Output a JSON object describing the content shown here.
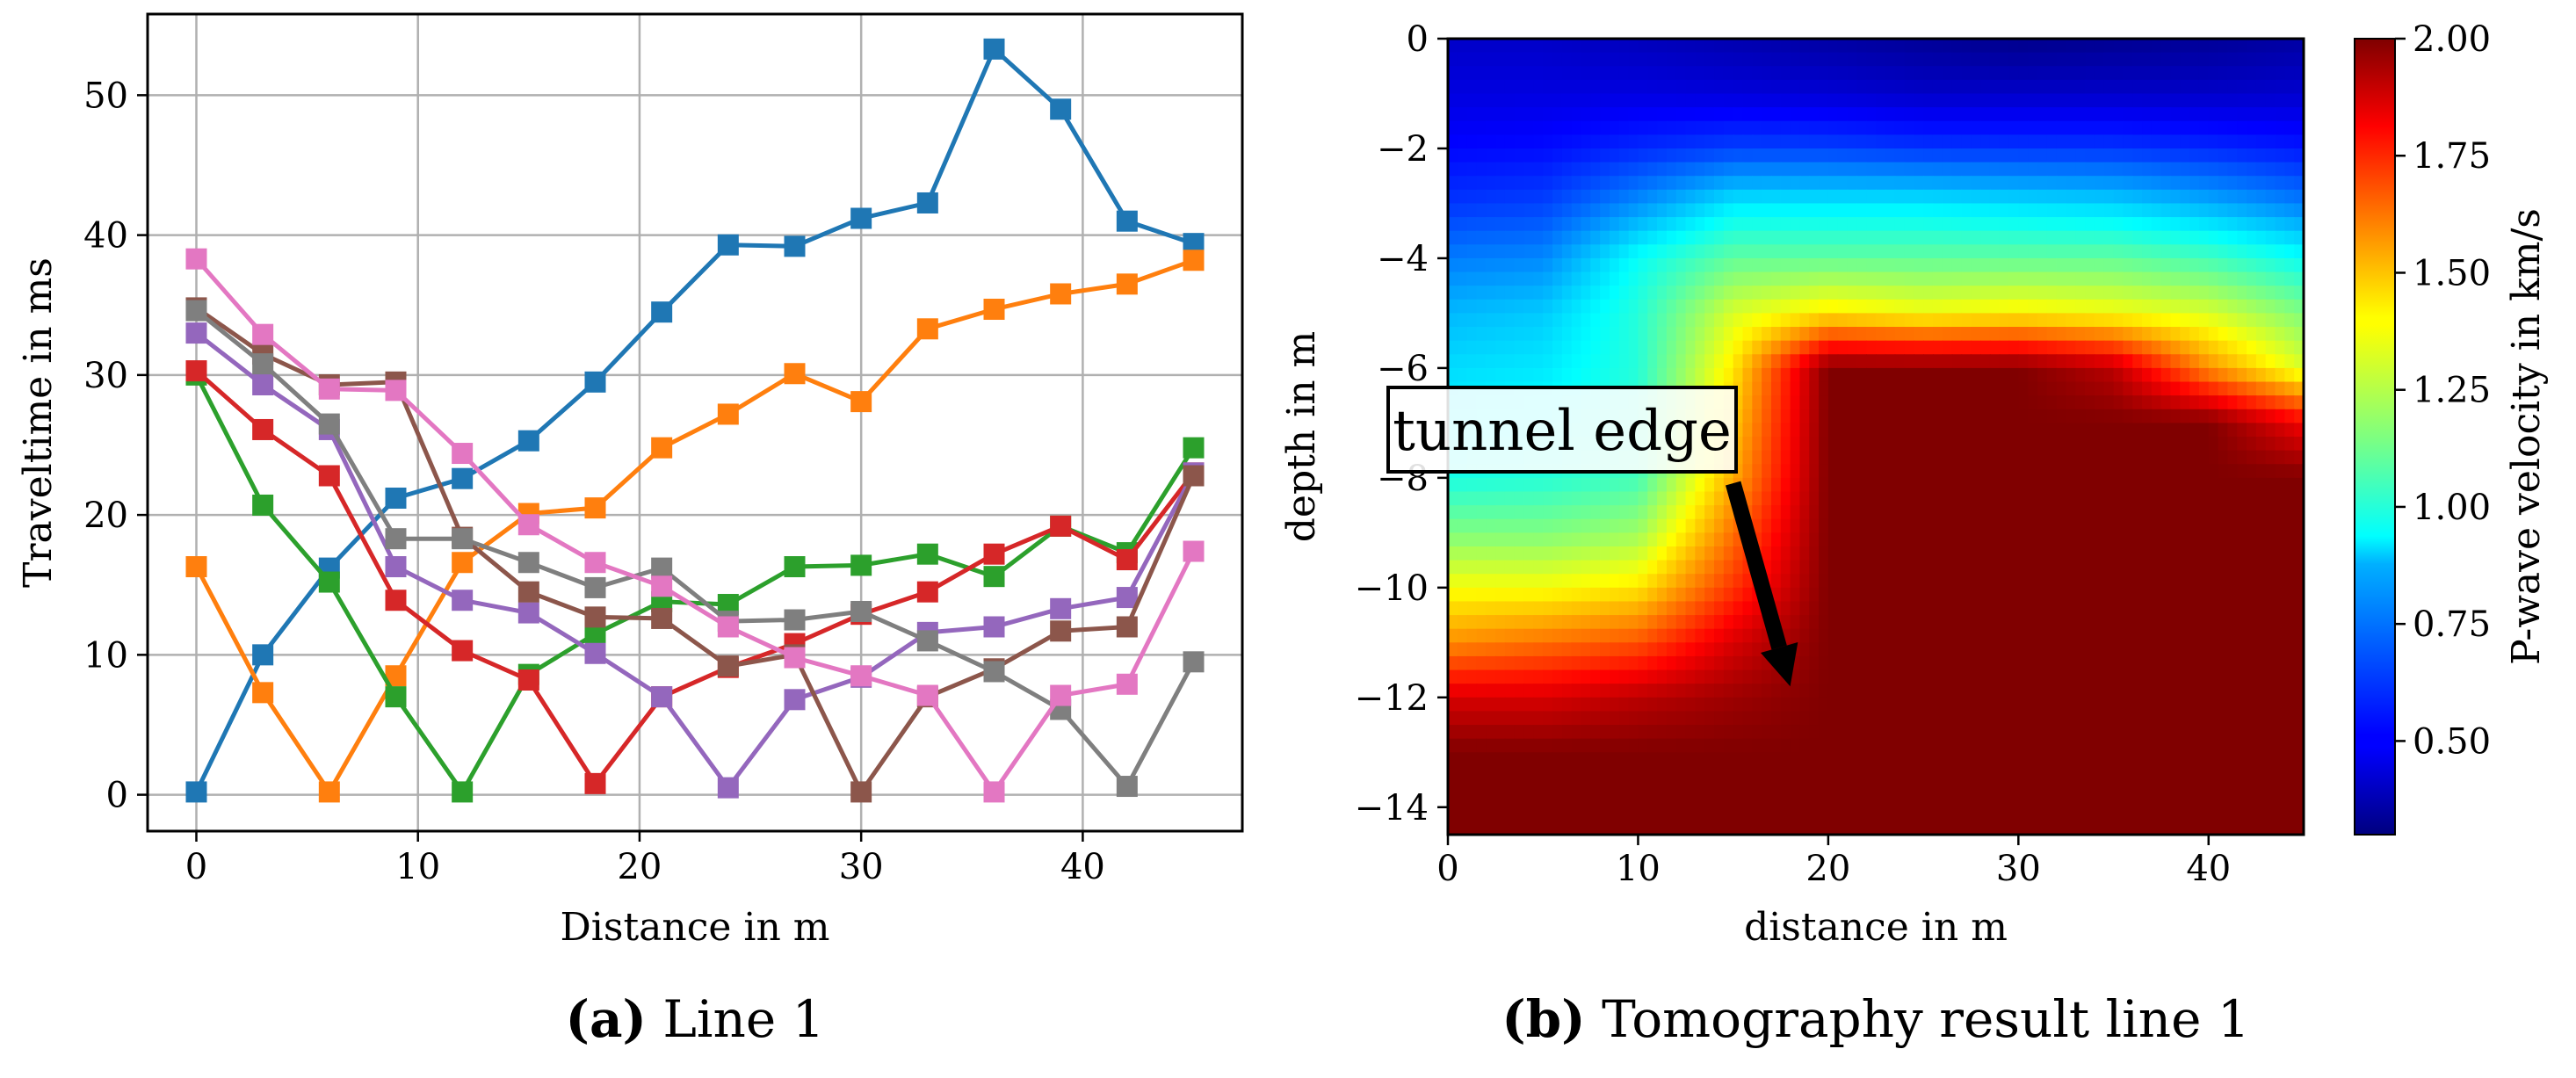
{
  "chart_data": [
    {
      "type": "line",
      "caption_letter": "(a)",
      "caption_text": "Line 1",
      "xlabel": "Distance in m",
      "ylabel": "Traveltime in ms",
      "xlim": [
        -2.2,
        47.2
      ],
      "ylim": [
        -2.6,
        55.8
      ],
      "xticks": [
        0,
        10,
        20,
        30,
        40
      ],
      "yticks": [
        0,
        10,
        20,
        30,
        40,
        50
      ],
      "grid": true,
      "marker": "square",
      "x": [
        0,
        3,
        6,
        9,
        12,
        15,
        18,
        21,
        24,
        27,
        30,
        33,
        36,
        39,
        42,
        45
      ],
      "series": [
        {
          "color": "#1f77b4",
          "values": [
            0.2,
            10.0,
            16.2,
            21.2,
            22.6,
            25.3,
            29.5,
            34.5,
            39.3,
            39.2,
            41.2,
            42.3,
            53.3,
            49.0,
            41.0,
            39.4
          ]
        },
        {
          "color": "#ff7f0e",
          "values": [
            16.3,
            7.3,
            0.2,
            8.5,
            16.6,
            20.1,
            20.5,
            24.8,
            27.2,
            30.1,
            28.1,
            33.3,
            34.7,
            35.8,
            36.5,
            38.2
          ]
        },
        {
          "color": "#2ca02c",
          "values": [
            30.0,
            20.7,
            15.2,
            7.0,
            0.2,
            8.6,
            11.5,
            13.8,
            13.6,
            16.3,
            16.4,
            17.2,
            15.6,
            19.2,
            17.3,
            24.8
          ]
        },
        {
          "color": "#d62728",
          "values": [
            30.3,
            26.1,
            22.8,
            13.9,
            10.3,
            8.2,
            0.8,
            7.0,
            9.1,
            10.8,
            12.9,
            14.5,
            17.2,
            19.2,
            16.8,
            23.0
          ]
        },
        {
          "color": "#9467bd",
          "values": [
            33.0,
            29.3,
            26.1,
            16.3,
            13.9,
            13.0,
            10.1,
            7.0,
            0.5,
            6.8,
            8.4,
            11.6,
            12.0,
            13.3,
            14.1,
            23.0
          ]
        },
        {
          "color": "#8c564b",
          "values": [
            34.8,
            31.5,
            29.3,
            29.5,
            18.4,
            14.5,
            12.7,
            12.6,
            9.2,
            10.0,
            0.2,
            7.0,
            9.0,
            11.7,
            12.0,
            22.8
          ]
        },
        {
          "color": "#7f7f7f",
          "values": [
            34.6,
            30.8,
            26.5,
            18.3,
            18.3,
            16.6,
            14.8,
            16.2,
            12.4,
            12.5,
            13.1,
            11.0,
            8.8,
            6.1,
            0.6,
            9.5
          ]
        },
        {
          "color": "#e377c2",
          "values": [
            38.3,
            32.9,
            29.0,
            28.9,
            24.4,
            19.3,
            16.6,
            14.9,
            12.0,
            9.8,
            8.5,
            7.1,
            0.2,
            7.1,
            7.9,
            17.4
          ]
        }
      ]
    },
    {
      "type": "heatmap",
      "caption_letter": "(b)",
      "caption_text": "Tomography result line 1",
      "xlabel": "distance in m",
      "ylabel": "depth in m",
      "xlim": [
        0,
        45
      ],
      "ylim": [
        -14.5,
        0
      ],
      "xticks": [
        0,
        10,
        20,
        30,
        40
      ],
      "yticks": [
        0,
        -2,
        -4,
        -6,
        -8,
        -10,
        -12,
        -14
      ],
      "colorbar_label": "P-wave velocity in km/s",
      "colorbar_range": [
        0.3,
        2.0
      ],
      "colorbar_ticks": [
        "0.50",
        "0.75",
        "1.00",
        "1.25",
        "1.50",
        "1.75",
        "2.00"
      ],
      "colormap": "jet",
      "annotation": {
        "text": "tunnel edge",
        "arrow_from": [
          15,
          -8.1
        ],
        "arrow_to": [
          18,
          -11.8
        ]
      },
      "grid_x": [
        0,
        5,
        10,
        15,
        20,
        25,
        30,
        35,
        40,
        45
      ],
      "grid_y": [
        0,
        -1,
        -2,
        -3,
        -4,
        -5,
        -6,
        -7,
        -8,
        -9,
        -10,
        -11,
        -12,
        -13,
        -14
      ],
      "velocity": [
        [
          0.42,
          0.42,
          0.4,
          0.38,
          0.36,
          0.34,
          0.32,
          0.33,
          0.34,
          0.36
        ],
        [
          0.46,
          0.46,
          0.46,
          0.45,
          0.44,
          0.42,
          0.42,
          0.42,
          0.42,
          0.43
        ],
        [
          0.52,
          0.53,
          0.58,
          0.62,
          0.62,
          0.6,
          0.6,
          0.6,
          0.58,
          0.55
        ],
        [
          0.6,
          0.62,
          0.75,
          0.9,
          0.9,
          0.9,
          0.88,
          0.86,
          0.8,
          0.72
        ],
        [
          0.72,
          0.74,
          0.95,
          1.1,
          1.1,
          1.1,
          1.1,
          1.1,
          1.05,
          0.95
        ],
        [
          0.82,
          0.85,
          1.0,
          1.3,
          1.4,
          1.35,
          1.38,
          1.35,
          1.3,
          1.15
        ],
        [
          0.88,
          0.9,
          1.0,
          1.4,
          2.0,
          2.0,
          2.0,
          1.9,
          1.55,
          1.3
        ],
        [
          0.92,
          0.95,
          1.02,
          1.45,
          2.0,
          2.0,
          2.0,
          2.0,
          2.0,
          1.8
        ],
        [
          0.98,
          1.0,
          1.05,
          1.5,
          2.0,
          2.0,
          2.0,
          2.0,
          2.0,
          2.0
        ],
        [
          1.15,
          1.15,
          1.2,
          1.6,
          2.0,
          2.0,
          2.0,
          2.0,
          2.0,
          2.0
        ],
        [
          1.35,
          1.35,
          1.4,
          1.7,
          2.0,
          2.0,
          2.0,
          2.0,
          2.0,
          2.0
        ],
        [
          1.55,
          1.6,
          1.65,
          1.85,
          2.0,
          2.0,
          2.0,
          2.0,
          2.0,
          2.0
        ],
        [
          1.85,
          1.85,
          1.9,
          1.95,
          2.0,
          2.0,
          2.0,
          2.0,
          2.0,
          2.0
        ],
        [
          2.0,
          2.0,
          2.0,
          2.0,
          2.0,
          2.0,
          2.0,
          2.0,
          2.0,
          2.0
        ],
        [
          2.0,
          2.0,
          2.0,
          2.0,
          2.0,
          2.0,
          2.0,
          2.0,
          2.0,
          2.0
        ]
      ]
    }
  ]
}
